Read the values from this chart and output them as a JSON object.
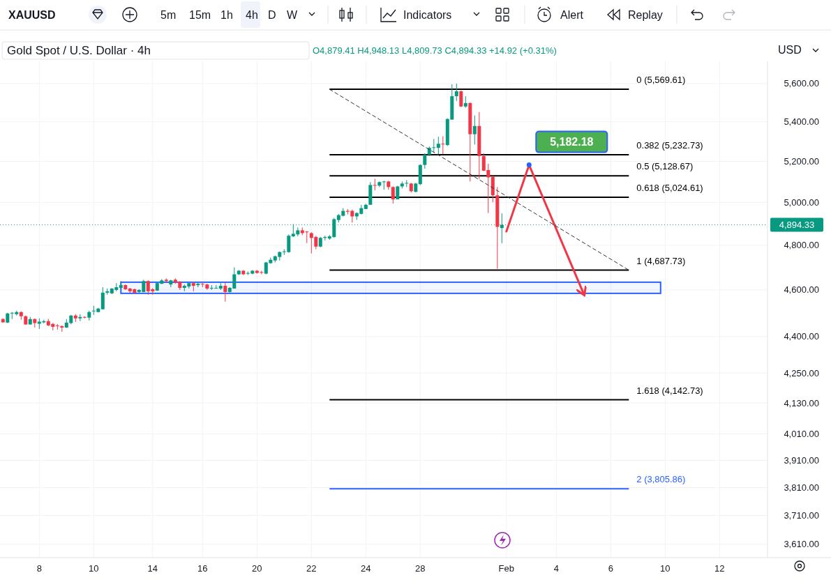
{
  "chart_data": {
    "type": "candlestick",
    "title": "Gold Spot / U.S. Dollar · 4h",
    "subtitle": "O4,879.41 H4,948.13 L4,809.73 C4,894.33 +14.92 (+0.31%)",
    "log": true,
    "grid": true,
    "ylim": [
      3564,
      5720
    ],
    "yticks": [
      {
        "value": 5600,
        "label": "5,600.00"
      },
      {
        "value": 5400,
        "label": "5,400.00"
      },
      {
        "value": 5200,
        "label": "5,200.00"
      },
      {
        "value": 5000,
        "label": "5,000.00"
      },
      {
        "value": 4800,
        "label": "4,800.00"
      },
      {
        "value": 4600,
        "label": "4,600.00"
      },
      {
        "value": 4400,
        "label": "4,400.00"
      },
      {
        "value": 4250,
        "label": "4,250.00"
      },
      {
        "value": 4130,
        "label": "4,130.00"
      },
      {
        "value": 4010,
        "label": "4,010.00"
      },
      {
        "value": 3910,
        "label": "3,910.00"
      },
      {
        "value": 3810,
        "label": "3,810.00"
      },
      {
        "value": 3710,
        "label": "3,710.00"
      },
      {
        "value": 3610,
        "label": "3,610.00"
      }
    ],
    "categories": [
      null,
      null,
      null,
      null,
      null,
      null,
      null,
      null,
      "8",
      null,
      null,
      null,
      null,
      null,
      null,
      null,
      null,
      null,
      null,
      null,
      "10",
      null,
      null,
      null,
      null,
      null,
      null,
      null,
      null,
      null,
      null,
      null,
      null,
      "14",
      null,
      null,
      null,
      null,
      null,
      null,
      null,
      null,
      null,
      null,
      "16",
      null,
      null,
      null,
      null,
      null,
      null,
      null,
      null,
      null,
      null,
      null,
      "20",
      null,
      null,
      null,
      null,
      null,
      null,
      null,
      null,
      null,
      null,
      null,
      "22",
      null,
      null,
      null,
      null,
      null,
      null,
      null,
      null,
      null,
      null,
      null,
      "24",
      null,
      null,
      null,
      null,
      null,
      null,
      null,
      null,
      null,
      null,
      null,
      "28",
      null,
      null,
      null,
      null,
      null,
      null,
      null,
      null,
      null,
      null,
      null,
      null,
      null,
      null,
      null,
      null,
      null,
      null,
      "Feb",
      null,
      null,
      null,
      null,
      null,
      null,
      null,
      null,
      null,
      null,
      "4",
      null,
      null,
      null,
      null,
      null,
      null,
      null,
      null,
      null,
      null,
      null,
      "6",
      null,
      null,
      null,
      null,
      null,
      null,
      null,
      null,
      null,
      null,
      null,
      "10",
      null,
      null,
      null,
      null,
      null,
      null,
      null,
      null,
      null,
      null,
      null,
      "12",
      null,
      null,
      null,
      null,
      null,
      null,
      null,
      null,
      null,
      null
    ],
    "ohlc": [
      [
        4474,
        4477,
        4459,
        4460
      ],
      [
        4459,
        4501,
        4457,
        4498
      ],
      [
        4499,
        4504,
        4474,
        4501
      ],
      [
        4495,
        4510,
        4489,
        4504
      ],
      [
        4504,
        4507,
        4471,
        4486
      ],
      [
        4486,
        4489,
        4450,
        4451
      ],
      [
        4451,
        4483,
        4450,
        4474
      ],
      [
        4474,
        4477,
        4438,
        4457
      ],
      [
        4454,
        4477,
        4432,
        4463
      ],
      [
        4460,
        4471,
        4456,
        4465
      ],
      [
        4465,
        4474,
        4444,
        4447
      ],
      [
        4453,
        4458,
        4426,
        4441
      ],
      [
        4447,
        4453,
        4429,
        4444
      ],
      [
        4444,
        4447,
        4420,
        4438
      ],
      [
        4438,
        4474,
        4436,
        4459
      ],
      [
        4457,
        4492,
        4452,
        4489
      ],
      [
        4489,
        4495,
        4462,
        4477
      ],
      [
        4477,
        4495,
        4465,
        4483
      ],
      [
        4483,
        4486,
        4477,
        4480
      ],
      [
        4480,
        4510,
        4468,
        4504
      ],
      [
        4507,
        4531,
        4492,
        4510
      ],
      [
        4504,
        4522,
        4502,
        4519
      ],
      [
        4516,
        4612,
        4516,
        4588
      ],
      [
        4588,
        4606,
        4579,
        4594
      ],
      [
        4585,
        4608,
        4582,
        4606
      ],
      [
        4600,
        4630,
        4594,
        4612
      ],
      [
        4609,
        4639,
        4606,
        4621
      ],
      [
        4621,
        4624,
        4600,
        4603
      ],
      [
        4606,
        4609,
        4588,
        4594
      ],
      [
        4603,
        4606,
        4582,
        4588
      ],
      [
        4591,
        4603,
        4588,
        4600
      ],
      [
        4591,
        4645,
        4590,
        4639
      ],
      [
        4639,
        4642,
        4579,
        4594
      ],
      [
        4603,
        4608,
        4579,
        4594
      ],
      [
        4597,
        4633,
        4596,
        4630
      ],
      [
        4627,
        4648,
        4626,
        4642
      ],
      [
        4645,
        4651,
        4633,
        4639
      ],
      [
        4624,
        4645,
        4612,
        4642
      ],
      [
        4645,
        4651,
        4627,
        4633
      ],
      [
        4636,
        4639,
        4600,
        4609
      ],
      [
        4609,
        4624,
        4594,
        4618
      ],
      [
        4615,
        4630,
        4606,
        4630
      ],
      [
        4630,
        4636,
        4594,
        4618
      ],
      [
        4621,
        4636,
        4612,
        4627
      ],
      [
        4627,
        4630,
        4612,
        4624
      ],
      [
        4624,
        4627,
        4600,
        4606
      ],
      [
        4606,
        4621,
        4600,
        4609
      ],
      [
        4607,
        4621,
        4606,
        4609
      ],
      [
        4606,
        4630,
        4600,
        4618
      ],
      [
        4618,
        4633,
        4549,
        4591
      ],
      [
        4591,
        4612,
        4588,
        4609
      ],
      [
        4606,
        4700,
        4606,
        4669
      ],
      [
        4669,
        4688,
        4666,
        4685
      ],
      [
        4685,
        4688,
        4666,
        4669
      ],
      [
        4672,
        4682,
        4666,
        4675
      ],
      [
        4672,
        4688,
        4669,
        4685
      ],
      [
        4685,
        4688,
        4672,
        4675
      ],
      [
        4679,
        4685,
        4669,
        4677
      ],
      [
        4672,
        4725,
        4669,
        4722
      ],
      [
        4719,
        4744,
        4716,
        4734
      ],
      [
        4731,
        4753,
        4722,
        4750
      ],
      [
        4747,
        4772,
        4731,
        4769
      ],
      [
        4769,
        4782,
        4756,
        4772
      ],
      [
        4769,
        4850,
        4766,
        4844
      ],
      [
        4841,
        4898,
        4838,
        4853
      ],
      [
        4850,
        4882,
        4841,
        4869
      ],
      [
        4869,
        4882,
        4847,
        4856
      ],
      [
        4863,
        4866,
        4810,
        4860
      ],
      [
        4856,
        4860,
        4763,
        4834
      ],
      [
        4838,
        4844,
        4782,
        4794
      ],
      [
        4794,
        4838,
        4791,
        4834
      ],
      [
        4834,
        4844,
        4822,
        4838
      ],
      [
        4831,
        4847,
        4825,
        4841
      ],
      [
        4838,
        4927,
        4834,
        4921
      ],
      [
        4917,
        4946,
        4905,
        4940
      ],
      [
        4937,
        4973,
        4934,
        4960
      ],
      [
        4960,
        4969,
        4943,
        4956
      ],
      [
        4960,
        4966,
        4905,
        4934
      ],
      [
        4934,
        4953,
        4918,
        4950
      ],
      [
        4946,
        4989,
        4943,
        4973
      ],
      [
        4969,
        4993,
        4969,
        4989
      ],
      [
        4989,
        5098,
        4989,
        5084
      ],
      [
        5084,
        5114,
        5058,
        5082
      ],
      [
        5081,
        5101,
        5074,
        5098
      ],
      [
        5098,
        5104,
        5061,
        5101
      ],
      [
        5101,
        5104,
        5061,
        5074
      ],
      [
        5074,
        5077,
        4995,
        5015
      ],
      [
        5015,
        5080,
        5015,
        5077
      ],
      [
        5077,
        5101,
        5067,
        5091
      ],
      [
        5091,
        5108,
        5074,
        5094
      ],
      [
        5091,
        5094,
        5048,
        5054
      ],
      [
        5051,
        5094,
        5048,
        5091
      ],
      [
        5088,
        5185,
        5084,
        5182
      ],
      [
        5182,
        5240,
        5164,
        5233
      ],
      [
        5233,
        5274,
        5226,
        5267
      ],
      [
        5267,
        5312,
        5243,
        5270
      ],
      [
        5267,
        5323,
        5236,
        5288
      ],
      [
        5288,
        5326,
        5236,
        5286
      ],
      [
        5281,
        5418,
        5277,
        5414
      ],
      [
        5411,
        5596,
        5410,
        5533
      ],
      [
        5533,
        5600,
        5508,
        5559
      ],
      [
        5559,
        5563,
        5476,
        5479
      ],
      [
        5479,
        5533,
        5472,
        5497
      ],
      [
        5497,
        5500,
        5101,
        5336
      ],
      [
        5336,
        5432,
        5284,
        5378
      ],
      [
        5378,
        5450,
        5114,
        5226
      ],
      [
        5226,
        5240,
        5151,
        5154
      ],
      [
        5157,
        5188,
        4950,
        5121
      ],
      [
        5124,
        5128,
        5001,
        5034
      ],
      [
        5034,
        5074,
        4694,
        4885
      ],
      [
        4879.41,
        4948.13,
        4809.73,
        4894.33
      ],
      null,
      null,
      null,
      null,
      null,
      null,
      null,
      null,
      null,
      null,
      null,
      null,
      null,
      null,
      null,
      null,
      null,
      null,
      null,
      null,
      null,
      null,
      null,
      null,
      null,
      null,
      null,
      null,
      null,
      null,
      null,
      null,
      null,
      null,
      null,
      null,
      null,
      null,
      null,
      null,
      null,
      null,
      null,
      null,
      null,
      null,
      null,
      null,
      null,
      null,
      null,
      null,
      null,
      null,
      null,
      null,
      null,
      null
    ],
    "colors": [
      "#f23645",
      "#089981",
      "#089981",
      "#089981",
      "#f23645",
      "#f23645",
      "#089981",
      "#f23645",
      "#089981",
      "#089981",
      "#f23645",
      "#f23645",
      "#f23645",
      "#f23645",
      "#089981",
      "#089981",
      "#f23645",
      "#089981",
      "#f23645",
      "#089981",
      "#089981",
      "#089981",
      "#089981",
      "#089981",
      "#089981",
      "#089981",
      "#089981",
      "#f23645",
      "#f23645",
      "#f23645",
      "#089981",
      "#089981",
      "#f23645",
      "#f23645",
      "#089981",
      "#089981",
      "#f23645",
      "#089981",
      "#f23645",
      "#f23645",
      "#089981",
      "#089981",
      "#f23645",
      "#089981",
      "#f23645",
      "#f23645",
      "#089981",
      "#089981",
      "#089981",
      "#f23645",
      "#089981",
      "#089981",
      "#089981",
      "#f23645",
      "#089981",
      "#089981",
      "#f23645",
      "#f23645",
      "#089981",
      "#089981",
      "#089981",
      "#089981",
      "#089981",
      "#089981",
      "#089981",
      "#089981",
      "#f23645",
      "#f23645",
      "#f23645",
      "#f23645",
      "#089981",
      "#089981",
      "#089981",
      "#089981",
      "#089981",
      "#089981",
      "#f23645",
      "#f23645",
      "#089981",
      "#089981",
      "#089981",
      "#089981",
      "#f23645",
      "#089981",
      "#089981",
      "#f23645",
      "#f23645",
      "#089981",
      "#089981",
      "#089981",
      "#f23645",
      "#089981",
      "#089981",
      "#089981",
      "#089981",
      "#089981",
      "#089981",
      "#f23645",
      "#089981",
      "#089981",
      "#089981",
      "#f23645",
      "#089981",
      "#f23645",
      "#089981",
      "#f23645",
      "#f23645",
      "#f23645",
      "#f23645",
      "#f23645",
      "#089981",
      null,
      null,
      null,
      null,
      null,
      null,
      null,
      null,
      null,
      null,
      null,
      null,
      null,
      null,
      null,
      null,
      null,
      null,
      null,
      null,
      null,
      null,
      null,
      null,
      null,
      null,
      null,
      null,
      null,
      null,
      null,
      null,
      null,
      null,
      null,
      null,
      null,
      null,
      null,
      null,
      null,
      null,
      null,
      null,
      null,
      null,
      null,
      null,
      null,
      null,
      null,
      null,
      null,
      null,
      null,
      null,
      null,
      null
    ],
    "series": [
      {
        "type": "line",
        "color": "#f23645",
        "line_style": "solid",
        "values": [
          null,
          null,
          null,
          null,
          null,
          null,
          null,
          null,
          null,
          null,
          null,
          null,
          null,
          null,
          null,
          null,
          null,
          null,
          null,
          null,
          null,
          null,
          null,
          null,
          null,
          null,
          null,
          null,
          null,
          null,
          null,
          null,
          null,
          null,
          null,
          null,
          null,
          null,
          null,
          null,
          null,
          null,
          null,
          null,
          null,
          null,
          null,
          null,
          null,
          null,
          null,
          null,
          null,
          null,
          null,
          null,
          null,
          null,
          null,
          null,
          null,
          null,
          null,
          null,
          null,
          null,
          null,
          null,
          null,
          null,
          null,
          null,
          null,
          null,
          null,
          null,
          null,
          null,
          null,
          null,
          null,
          null,
          null,
          null,
          null,
          null,
          null,
          null,
          null,
          null,
          null,
          null,
          null,
          null,
          null,
          null,
          null,
          null,
          null,
          null,
          null,
          null,
          null,
          null,
          null,
          null,
          null,
          null,
          null,
          null,
          null,
          4864,
          null,
          null,
          null,
          null,
          5182.18,
          null,
          null,
          null,
          null,
          null,
          null,
          null,
          null,
          null,
          null,
          null,
          4585,
          null,
          null,
          null,
          null,
          null,
          null,
          null,
          null,
          null,
          null,
          null,
          null,
          null,
          null,
          null,
          null,
          null,
          null,
          null,
          null,
          null,
          null,
          null,
          null,
          null,
          null,
          null,
          null,
          null,
          null,
          null,
          null,
          null,
          null,
          null,
          null,
          null,
          null,
          null,
          null
        ]
      },
      {
        "type": "line",
        "color": "#333333",
        "line_style": "dashed",
        "values": [
          null,
          null,
          null,
          null,
          null,
          null,
          null,
          null,
          null,
          null,
          null,
          null,
          null,
          null,
          null,
          null,
          null,
          null,
          null,
          null,
          null,
          null,
          null,
          null,
          null,
          null,
          null,
          null,
          null,
          null,
          null,
          null,
          null,
          null,
          null,
          null,
          null,
          null,
          null,
          null,
          null,
          null,
          null,
          null,
          null,
          null,
          null,
          null,
          null,
          null,
          null,
          null,
          null,
          null,
          null,
          null,
          null,
          null,
          null,
          null,
          null,
          null,
          null,
          null,
          null,
          null,
          null,
          null,
          null,
          null,
          null,
          null,
          5569.61,
          null,
          null,
          null,
          null,
          null,
          null,
          null,
          null,
          null,
          null,
          null,
          null,
          null,
          null,
          null,
          null,
          null,
          null,
          null,
          null,
          null,
          null,
          null,
          null,
          null,
          null,
          null,
          null,
          null,
          null,
          null,
          null,
          null,
          null,
          null,
          null,
          null,
          null,
          null,
          null,
          null,
          null,
          null,
          null,
          null,
          null,
          null,
          null,
          null,
          null,
          null,
          null,
          null,
          null,
          null,
          null,
          null,
          null,
          null,
          null,
          null,
          null,
          null,
          null,
          null,
          4687.73,
          null,
          null,
          null,
          null,
          null,
          null,
          null,
          null,
          null,
          null,
          null,
          null,
          null,
          null,
          null,
          null,
          null,
          null,
          null,
          null,
          null,
          null,
          null,
          null,
          null,
          null,
          null,
          null,
          null,
          null
        ]
      }
    ],
    "ref_lines": [
      {
        "axis": "y",
        "value": 5569.61,
        "label": "0 (5,569.61)",
        "color": "#000000"
      },
      {
        "axis": "y",
        "value": 5232.73,
        "label": "0.382 (5,232.73)",
        "color": "#000000"
      },
      {
        "axis": "y",
        "value": 5128.67,
        "label": "0.5 (5,128.67)",
        "color": "#000000"
      },
      {
        "axis": "y",
        "value": 5024.61,
        "label": "0.618 (5,024.61)",
        "color": "#000000"
      },
      {
        "axis": "y",
        "value": 4687.73,
        "label": "1 (4,687.73)",
        "color": "#000000"
      },
      {
        "axis": "y",
        "value": 4142.73,
        "label": "1.618 (4,142.73)",
        "color": "#000000"
      },
      {
        "axis": "y",
        "value": 3805.86,
        "label": "2 (3,805.86)",
        "color": "#2962ff"
      },
      {
        "axis": "y",
        "value": 4894.33,
        "label": "4,894.33",
        "color": "#089981",
        "line_style": "dotted"
      }
    ],
    "bands": [
      {
        "axis": "y",
        "from": 4585,
        "to": 4634,
        "color": "#2962ff"
      }
    ],
    "annotations": [
      "XAUUSD",
      "5m",
      "15m",
      "1h",
      "4h",
      "D",
      "W",
      "Indicators",
      "Alert",
      "Replay",
      "USD",
      "5,182.18"
    ]
  }
}
